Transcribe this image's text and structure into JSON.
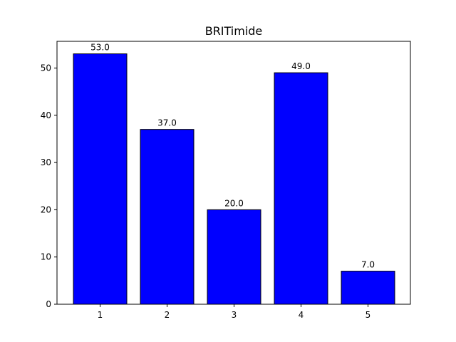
{
  "chart_data": {
    "type": "bar",
    "title": "BRITimide",
    "xlabel": "",
    "ylabel": "",
    "categories": [
      "1",
      "2",
      "3",
      "4",
      "5"
    ],
    "values": [
      53.0,
      37.0,
      20.0,
      49.0,
      7.0
    ],
    "data_labels": [
      "53.0",
      "37.0",
      "20.0",
      "49.0",
      "7.0"
    ],
    "ylim": [
      0,
      55.65
    ],
    "y_ticks": [
      0,
      10,
      20,
      30,
      40,
      50
    ],
    "y_tick_labels": [
      "0",
      "10",
      "20",
      "30",
      "40",
      "50"
    ],
    "grid": false,
    "bar_color": "#0000ff",
    "bar_edge_color": "#000000"
  }
}
